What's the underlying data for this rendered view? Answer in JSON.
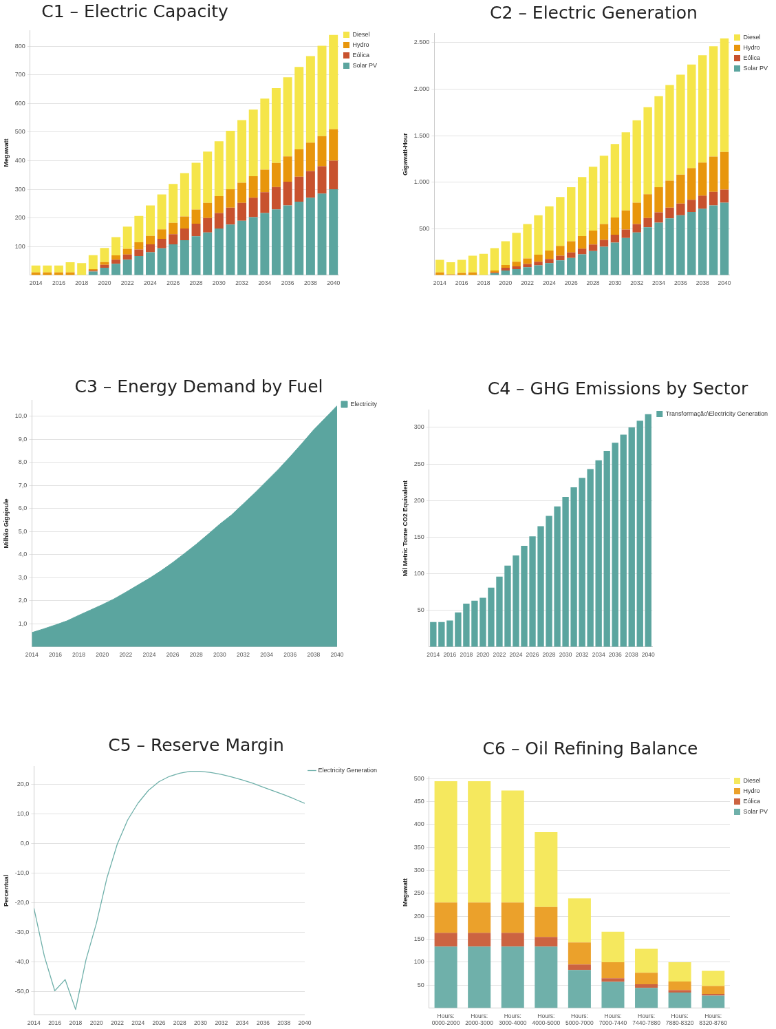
{
  "chart_data": [
    {
      "type": "bar",
      "title": "C1 – Electric Capacity",
      "ylabel": "Megawatt",
      "stacked": true,
      "grid": "y",
      "legend": "right",
      "categories": [
        "2014",
        null,
        "2016",
        null,
        "2018",
        null,
        "2020",
        null,
        "2022",
        null,
        "2024",
        null,
        "2026",
        null,
        "2028",
        null,
        "2030",
        null,
        "2032",
        null,
        "2034",
        null,
        "2036",
        null,
        "2038",
        null,
        "2040"
      ],
      "ylim": [
        0,
        855
      ],
      "yticks": [
        100,
        200,
        300,
        400,
        500,
        600,
        700,
        800
      ],
      "series": [
        {
          "name": "Solar PV",
          "color": "#5ba59f",
          "values": [
            0,
            0,
            0,
            0,
            0,
            13,
            26,
            40,
            54,
            67,
            80,
            94,
            108,
            122,
            136,
            149,
            163,
            177,
            190,
            203,
            217,
            230,
            244,
            257,
            271,
            285,
            300
          ]
        },
        {
          "name": "Eólica",
          "color": "#c8522e",
          "values": [
            0,
            0,
            0,
            0,
            0,
            4,
            10,
            14,
            18,
            23,
            28,
            33,
            35,
            41,
            44,
            51,
            54,
            59,
            63,
            68,
            73,
            78,
            83,
            87,
            93,
            96,
            100
          ]
        },
        {
          "name": "Hydro",
          "color": "#e8960c",
          "values": [
            10,
            10,
            10,
            10,
            0,
            4,
            10,
            15,
            20,
            25,
            29,
            33,
            40,
            42,
            49,
            53,
            59,
            64,
            70,
            75,
            79,
            84,
            88,
            96,
            99,
            105,
            110
          ]
        },
        {
          "name": "Diesel",
          "color": "#f5e54a",
          "values": [
            24,
            24,
            24,
            35,
            42,
            49,
            49,
            64,
            78,
            92,
            107,
            122,
            136,
            152,
            164,
            179,
            192,
            205,
            219,
            233,
            248,
            262,
            277,
            288,
            303,
            316,
            330
          ]
        }
      ]
    },
    {
      "type": "bar",
      "title": "C2 – Electric Generation",
      "ylabel": "Gigawatt-Hour",
      "stacked": true,
      "grid": "y",
      "legend": "right",
      "categories": [
        "2014",
        null,
        "2016",
        null,
        "2018",
        null,
        "2020",
        null,
        "2022",
        null,
        "2024",
        null,
        "2026",
        null,
        "2028",
        null,
        "2030",
        null,
        "2032",
        null,
        "2034",
        null,
        "2036",
        null,
        "2038",
        null,
        "2040"
      ],
      "ylim": [
        0,
        2600
      ],
      "yticks": [
        500,
        {
          "value": 1000,
          "label": "1.000"
        },
        {
          "value": 1500,
          "label": "1.500"
        },
        {
          "value": 2000,
          "label": "2.000"
        },
        {
          "value": 2500,
          "label": "2.500"
        }
      ],
      "series": [
        {
          "name": "Solar PV",
          "color": "#5ba59f",
          "values": [
            0,
            0,
            0,
            0,
            0,
            20,
            50,
            65,
            85,
            105,
            130,
            160,
            185,
            225,
            260,
            305,
            350,
            400,
            460,
            515,
            565,
            610,
            645,
            680,
            715,
            750,
            780
          ]
        },
        {
          "name": "Eólica",
          "color": "#c8522e",
          "values": [
            0,
            0,
            0,
            0,
            0,
            10,
            30,
            30,
            35,
            40,
            45,
            50,
            60,
            60,
            70,
            75,
            85,
            90,
            90,
            100,
            110,
            115,
            125,
            130,
            140,
            145,
            140
          ]
        },
        {
          "name": "Hydro",
          "color": "#e8960c",
          "values": [
            30,
            10,
            25,
            30,
            0,
            20,
            30,
            50,
            60,
            75,
            90,
            105,
            120,
            135,
            150,
            170,
            185,
            205,
            230,
            255,
            270,
            290,
            310,
            340,
            355,
            380,
            405
          ]
        },
        {
          "name": "Diesel",
          "color": "#f5e54a",
          "values": [
            135,
            130,
            140,
            180,
            230,
            240,
            255,
            310,
            370,
            425,
            475,
            525,
            580,
            635,
            685,
            735,
            790,
            840,
            885,
            935,
            980,
            1030,
            1075,
            1115,
            1155,
            1185,
            1220
          ]
        }
      ]
    },
    {
      "type": "area",
      "title": "C3 – Energy Demand by Fuel",
      "ylabel": "Milhão Gigajoule",
      "grid": "y",
      "legend": "right",
      "x": [
        2014,
        2015,
        2016,
        2017,
        2018,
        2019,
        2020,
        2021,
        2022,
        2023,
        2024,
        2025,
        2026,
        2027,
        2028,
        2029,
        2030,
        2031,
        2032,
        2033,
        2034,
        2035,
        2036,
        2037,
        2038,
        2039,
        2040
      ],
      "xlim": [
        2014,
        2040
      ],
      "xticks": [
        2014,
        2016,
        2018,
        2020,
        2022,
        2024,
        2026,
        2028,
        2030,
        2032,
        2034,
        2036,
        2038,
        2040
      ],
      "ylim": [
        0,
        10.7
      ],
      "yticks": [
        {
          "value": 1,
          "label": "1,0"
        },
        {
          "value": 2,
          "label": "2,0"
        },
        {
          "value": 3,
          "label": "3,0"
        },
        {
          "value": 4,
          "label": "4,0"
        },
        {
          "value": 5,
          "label": "5,0"
        },
        {
          "value": 6,
          "label": "6,0"
        },
        {
          "value": 7,
          "label": "7,0"
        },
        {
          "value": 8,
          "label": "8,0"
        },
        {
          "value": 9,
          "label": "9,0"
        },
        {
          "value": 10,
          "label": "10,0"
        }
      ],
      "series": [
        {
          "name": "Electricity",
          "color": "#5ba59f",
          "values": [
            0.62,
            0.78,
            0.95,
            1.13,
            1.37,
            1.6,
            1.83,
            2.08,
            2.37,
            2.67,
            2.97,
            3.3,
            3.66,
            4.05,
            4.45,
            4.88,
            5.32,
            5.72,
            6.2,
            6.68,
            7.19,
            7.7,
            8.25,
            8.82,
            9.41,
            9.93,
            10.46
          ]
        }
      ]
    },
    {
      "type": "bar",
      "title": "C4 – GHG Emissions by Sector",
      "ylabel": "Mil Metric Tonne CO2 Equivalent",
      "grid": "y",
      "legend": "right",
      "categories": [
        "2014",
        null,
        "2016",
        null,
        "2018",
        null,
        "2020",
        null,
        "2022",
        null,
        "2024",
        null,
        "2026",
        null,
        "2028",
        null,
        "2030",
        null,
        "2032",
        null,
        "2034",
        null,
        "2036",
        null,
        "2038",
        null,
        "2040"
      ],
      "ylim": [
        0,
        324
      ],
      "yticks": [
        50,
        100,
        150,
        200,
        250,
        300
      ],
      "series": [
        {
          "name": "Transformação\\Electricity Generation",
          "color": "#5ba59f",
          "values": [
            34,
            34,
            36,
            47,
            59,
            63,
            67,
            81,
            96,
            111,
            125,
            138,
            151,
            165,
            179,
            192,
            205,
            218,
            231,
            243,
            255,
            268,
            279,
            290,
            300,
            309,
            318
          ]
        }
      ]
    },
    {
      "type": "line",
      "title": "C5 – Reserve Margin",
      "ylabel": "Percentual",
      "grid": "y",
      "legend": "right",
      "marker": "none",
      "line_style": "solid",
      "x": [
        2014,
        2015,
        2016,
        2017,
        2018,
        2019,
        2020,
        2021,
        2022,
        2023,
        2024,
        2025,
        2026,
        2027,
        2028,
        2029,
        2030,
        2031,
        2032,
        2033,
        2034,
        2035,
        2036,
        2037,
        2038,
        2039,
        2040
      ],
      "xlim": [
        2014,
        2040
      ],
      "xticks": [
        2014,
        2016,
        2018,
        2020,
        2022,
        2024,
        2026,
        2028,
        2030,
        2032,
        2034,
        2036,
        2038,
        2040
      ],
      "ylim": [
        -58,
        26
      ],
      "yticks": [
        {
          "value": -50,
          "label": "-50,0"
        },
        {
          "value": -40,
          "label": "-40,0"
        },
        {
          "value": -30,
          "label": "-30,0"
        },
        {
          "value": -20,
          "label": "-20,0"
        },
        {
          "value": -10,
          "label": "-10,0"
        },
        {
          "value": 0,
          "label": "0,0"
        },
        {
          "value": 10,
          "label": "10,0"
        },
        {
          "value": 20,
          "label": "20,0"
        }
      ],
      "series": [
        {
          "name": "Electricity Generation",
          "color": "#6fb0aa",
          "values": [
            -21.9,
            -38.1,
            -49.8,
            -46.0,
            -56.1,
            -39.3,
            -27.0,
            -11.8,
            -0.3,
            7.9,
            13.6,
            17.9,
            20.8,
            22.6,
            23.7,
            24.3,
            24.3,
            23.9,
            23.3,
            22.4,
            21.4,
            20.3,
            19.0,
            17.7,
            16.4,
            15.0,
            13.5
          ]
        }
      ]
    },
    {
      "type": "bar",
      "title": "C6 – Oil Refining Balance",
      "ylabel": "Megawatt",
      "stacked": true,
      "grid": "y",
      "legend": "right",
      "categories": [
        "Hours: 0000-2000",
        "Hours: 2000-3000",
        "Hours: 3000-4000",
        "Hours: 4000-5000",
        "Hours: 5000-7000",
        "Hours: 7000-7440",
        "Hours: 7440-7880",
        "Hours: 7880-8320",
        "Hours: 8320-8760"
      ],
      "ylim": [
        0,
        504
      ],
      "yticks": [
        50,
        100,
        150,
        200,
        250,
        300,
        350,
        400,
        450,
        500
      ],
      "series": [
        {
          "name": "Solar PV",
          "color": "#6fb0aa",
          "values": [
            134,
            134,
            134,
            134,
            83,
            57,
            44,
            34,
            27
          ]
        },
        {
          "name": "Eólica",
          "color": "#cc6341",
          "values": [
            30,
            30,
            30,
            21,
            12,
            8,
            8,
            5,
            4
          ]
        },
        {
          "name": "Hydro",
          "color": "#eba12b",
          "values": [
            66,
            66,
            66,
            65,
            48,
            35,
            25,
            19,
            17
          ]
        },
        {
          "name": "Diesel",
          "color": "#f5e85e",
          "values": [
            264,
            264,
            244,
            163,
            96,
            66,
            52,
            42,
            33
          ]
        }
      ]
    }
  ]
}
